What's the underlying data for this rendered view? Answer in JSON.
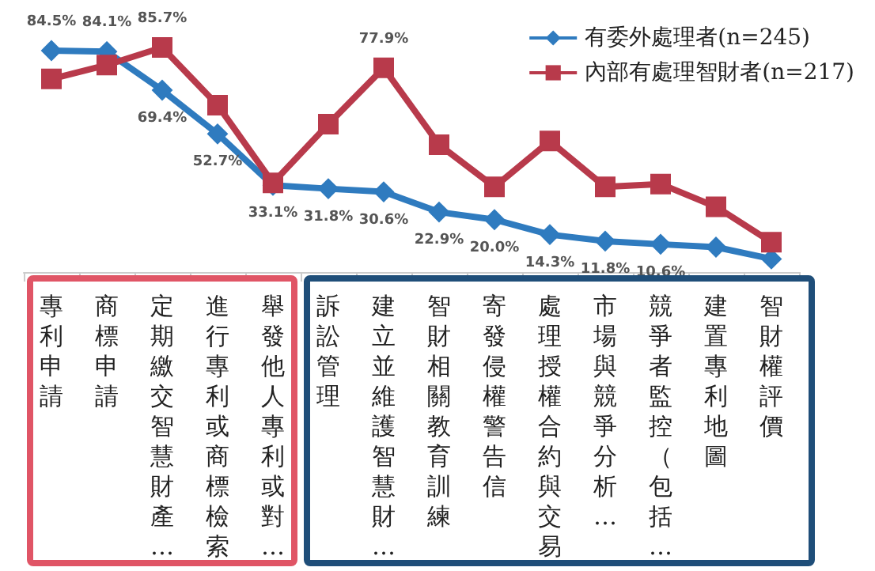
{
  "chart_data": {
    "type": "line",
    "legend": "top right",
    "categories": [
      "專利申請",
      "商標申請",
      "定期繳交智慧財產…",
      "進行專利或商標檢索",
      "舉發他人專利或對…",
      "訴訟管理",
      "建立並維護智慧財…",
      "智財相關教育訓練",
      "寄發侵權警告信",
      "處理授權合約與交易",
      "市場與競爭分析…",
      "競爭者監控（包括…",
      "建置專利地圖",
      "智財權評價"
    ],
    "series": [
      {
        "name": "有委外處理者(n=245)",
        "color": "#2f7bbf",
        "marker": "diamond",
        "values": [
          84.5,
          84.1,
          69.4,
          52.7,
          33.1,
          31.8,
          30.6,
          22.9,
          20.0,
          14.3,
          11.8,
          10.6,
          9.5,
          5
        ],
        "value_labels": [
          "84.5%",
          "84.1%",
          "69.4%",
          "52.7%",
          "33.1%",
          "31.8%",
          "30.6%",
          "22.9%",
          "20.0%",
          "14.3%",
          "11.8%",
          "10.6%",
          null,
          null
        ]
      },
      {
        "name": "內部有處理智財者(n=217)",
        "color": "#b83a4b",
        "marker": "square",
        "values": [
          73.7,
          79,
          85.7,
          63.7,
          34,
          56.4,
          77.9,
          48.6,
          32.5,
          50,
          32.5,
          33.6,
          24.9,
          11.4
        ],
        "value_labels": [
          null,
          null,
          "85.7%",
          null,
          null,
          null,
          "77.9%",
          null,
          null,
          null,
          null,
          null,
          null,
          null
        ]
      }
    ]
  }
}
